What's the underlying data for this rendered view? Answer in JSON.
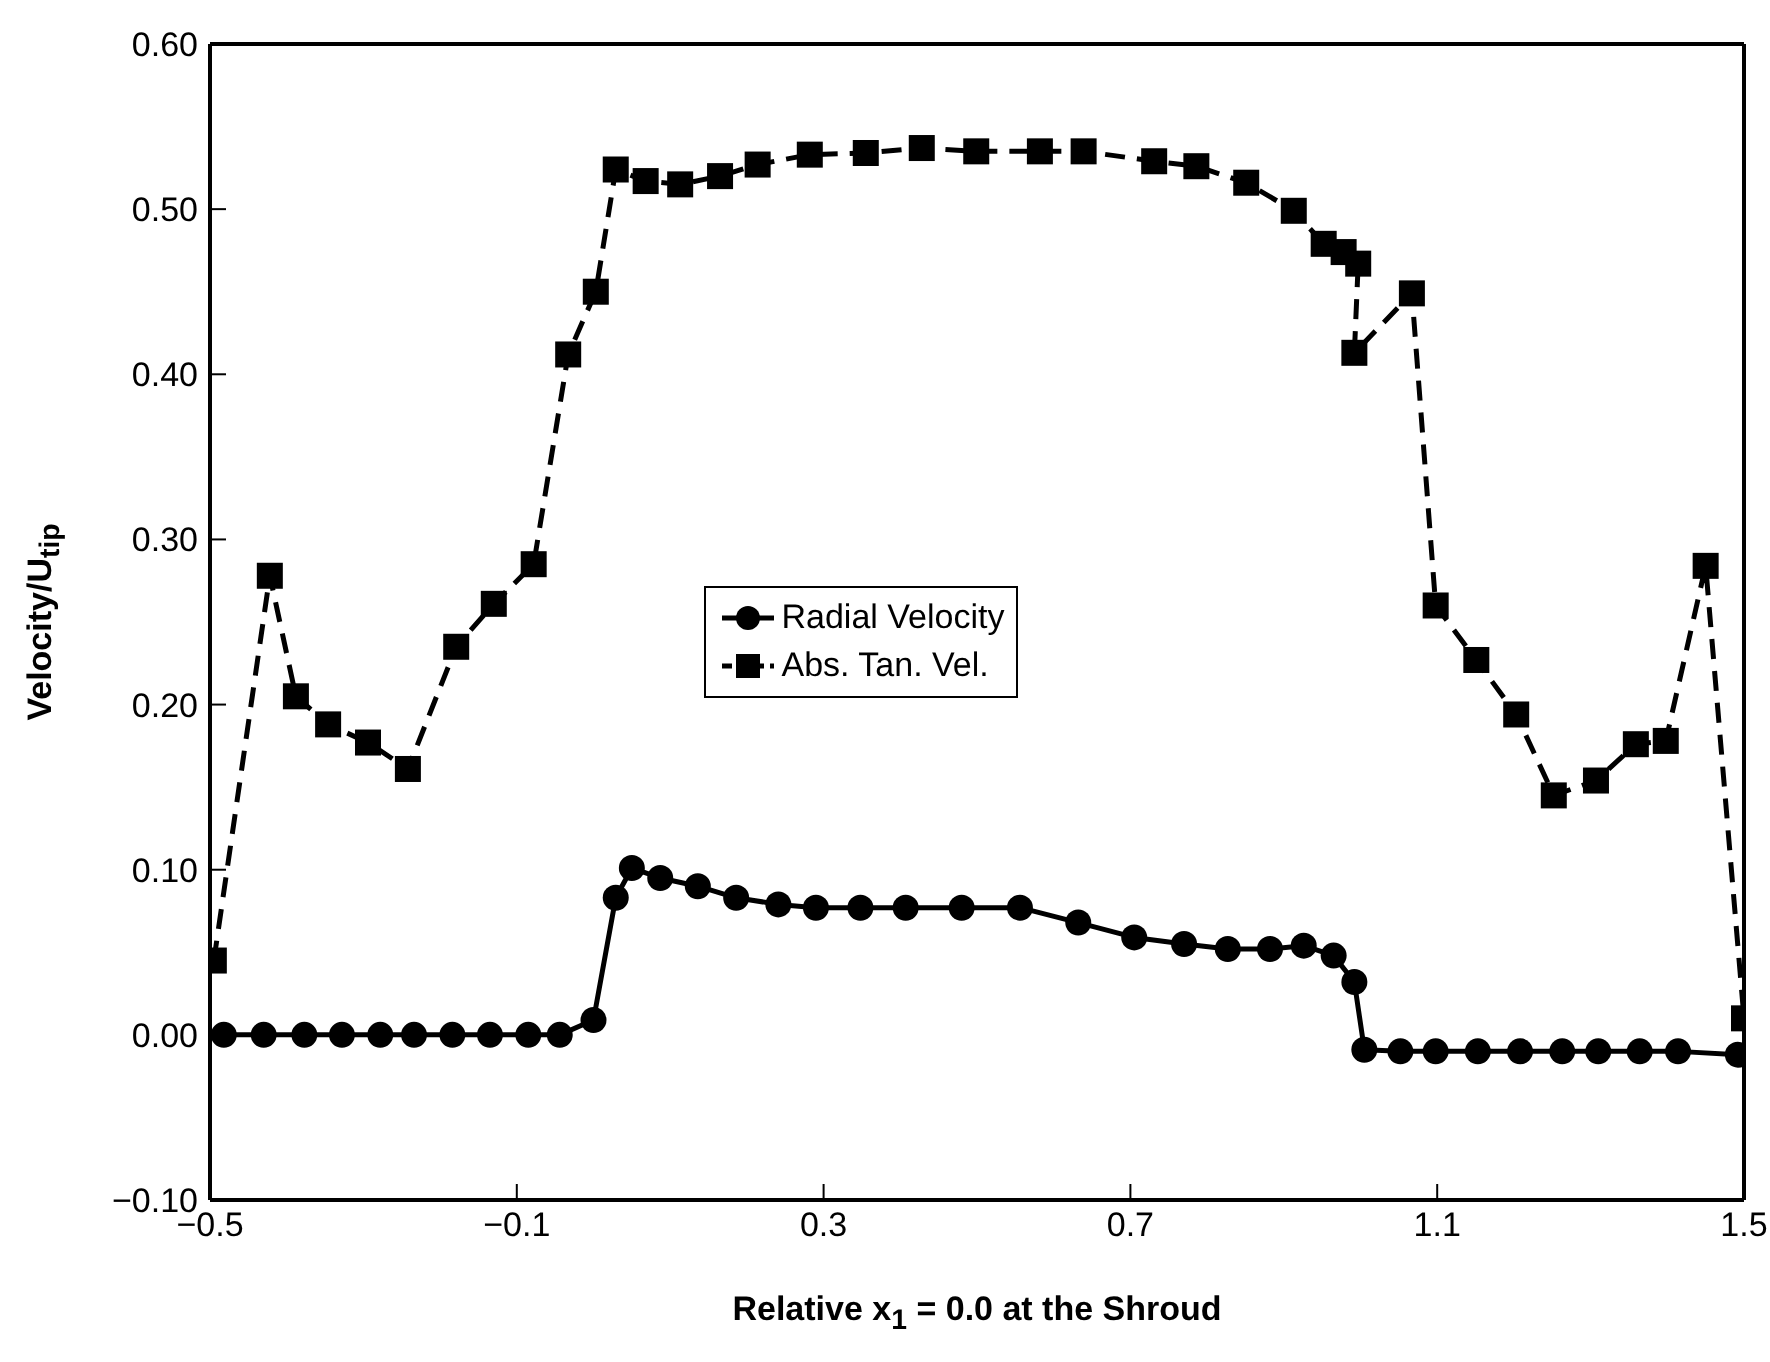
{
  "chart_data": {
    "type": "line",
    "xlabel": "Relative x$_{1}$ = 0.0 at the Shroud",
    "ylabel": "Velocity/U$_{tip}$",
    "xlim": [
      -0.5,
      1.5
    ],
    "xticks": [
      {
        "value": -0.5,
        "label": "−0.5"
      },
      {
        "value": -0.1,
        "label": "−0.1"
      },
      {
        "value": 0.3,
        "label": "0.3"
      },
      {
        "value": 0.7,
        "label": "0.7"
      },
      {
        "value": 1.1,
        "label": "1.1"
      },
      {
        "value": 1.5,
        "label": "1.5"
      }
    ],
    "ylim": [
      -0.1,
      0.6
    ],
    "yticks": [
      {
        "value": -0.1,
        "label": "−0.10"
      },
      {
        "value": 0,
        "label": "0.00"
      },
      {
        "value": 0.1,
        "label": "0.10"
      },
      {
        "value": 0.2,
        "label": "0.20"
      },
      {
        "value": 0.3,
        "label": "0.30"
      },
      {
        "value": 0.4,
        "label": "0.40"
      },
      {
        "value": 0.5,
        "label": "0.50"
      },
      {
        "value": 0.6,
        "label": "0.60"
      }
    ],
    "legend": "center",
    "series": [
      {
        "name": "Radial Velocity",
        "color": "#000000",
        "marker": "circle",
        "line_style": "solid",
        "x": [
          -0.482,
          -0.43,
          -0.377,
          -0.328,
          -0.278,
          -0.234,
          -0.184,
          -0.135,
          -0.085,
          -0.044,
          0.0,
          0.029,
          0.05,
          0.087,
          0.136,
          0.186,
          0.241,
          0.29,
          0.348,
          0.407,
          0.48,
          0.556,
          0.632,
          0.705,
          0.77,
          0.827,
          0.882,
          0.926,
          0.965,
          0.992,
          1.005,
          1.052,
          1.098,
          1.153,
          1.208,
          1.263,
          1.31,
          1.364,
          1.414,
          1.492
        ],
        "values": [
          0.0,
          0.0,
          0.0,
          0.0,
          0.0,
          0.0,
          0.0,
          0.0,
          0.0,
          0.0,
          0.009,
          0.083,
          0.101,
          0.095,
          0.09,
          0.083,
          0.079,
          0.077,
          0.077,
          0.077,
          0.077,
          0.077,
          0.068,
          0.059,
          0.055,
          0.052,
          0.052,
          0.054,
          0.048,
          0.032,
          -0.009,
          -0.01,
          -0.01,
          -0.01,
          -0.01,
          -0.01,
          -0.01,
          -0.01,
          -0.01,
          -0.012
        ]
      },
      {
        "name": "Abs. Tan. Vel.",
        "color": "#000000",
        "marker": "square",
        "line_style": "dashed",
        "x": [
          -0.495,
          -0.422,
          -0.388,
          -0.346,
          -0.294,
          -0.242,
          -0.179,
          -0.13,
          -0.078,
          -0.033,
          0.003,
          0.029,
          0.068,
          0.113,
          0.165,
          0.214,
          0.282,
          0.355,
          0.428,
          0.499,
          0.582,
          0.639,
          0.731,
          0.786,
          0.851,
          0.913,
          0.952,
          0.978,
          0.997,
          0.992,
          1.067,
          1.098,
          1.151,
          1.203,
          1.252,
          1.307,
          1.359,
          1.398,
          1.45,
          1.5
        ],
        "values": [
          0.045,
          0.278,
          0.205,
          0.188,
          0.177,
          0.161,
          0.235,
          0.261,
          0.285,
          0.412,
          0.45,
          0.524,
          0.517,
          0.515,
          0.52,
          0.527,
          0.533,
          0.534,
          0.537,
          0.535,
          0.535,
          0.535,
          0.529,
          0.526,
          0.516,
          0.499,
          0.479,
          0.474,
          0.467,
          0.413,
          0.449,
          0.26,
          0.227,
          0.194,
          0.145,
          0.154,
          0.176,
          0.178,
          0.284,
          0.01
        ]
      }
    ]
  }
}
